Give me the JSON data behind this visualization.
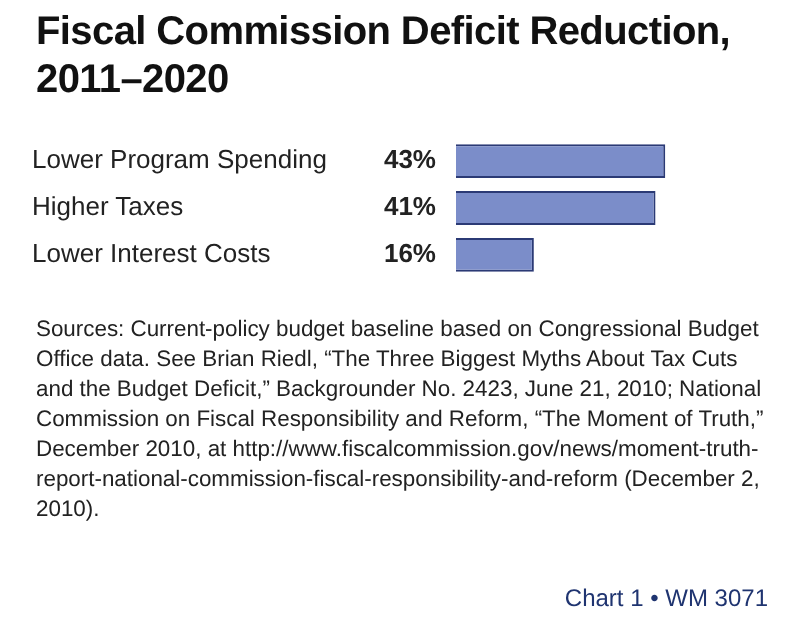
{
  "chart_data": {
    "type": "bar",
    "orientation": "horizontal",
    "title": "Fiscal Commission Deficit Reduction, 2011–2020",
    "categories": [
      "Lower Program Spending",
      "Higher Taxes",
      "Lower Interest Costs"
    ],
    "values": [
      43,
      41,
      16
    ],
    "value_labels": [
      "43%",
      "41%",
      "16%"
    ],
    "color": "#7b8dc9",
    "legend": false,
    "tick_labels": "y",
    "annotations": [
      "Sources: Current-policy budget baseline based on Congressional Budget Office data. See Brian Riedl, “The Three Biggest Myths About Tax Cuts and the Budget Deficit,” Backgrounder No. 2423, June 21, 2010; National Commission on Fiscal Responsibility and Reform, “The Moment of Truth,” December 2010, at http://www.fiscalcommission.gov/news/moment-truth-report-national-commission-fiscal-responsibility-and-reform (December 2, 2010).",
      "Chart 1 • WM 3071"
    ]
  }
}
